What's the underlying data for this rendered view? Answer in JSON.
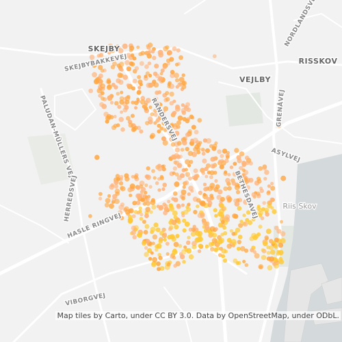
{
  "labels": [
    "SKEJBY",
    "SKEJBYBAKKEVEJ",
    "VEJLBY",
    "RISSKOV",
    "NORDLANDSVEJ",
    "GRENÅVEJ",
    "ASYLVEJ",
    "PALUDAN-MÜLLERS VEJ",
    "HERREDSVEJ",
    "RANDERSVEJ",
    "BETHESDAVEJ",
    "Riis Skov",
    "HASLE RINGVEJ",
    "VIBORGVEJ"
  ],
  "attribution": "Map tiles by Carto, under CC BY 3.0. Data by OpenStreetMap, under ODbL."
}
